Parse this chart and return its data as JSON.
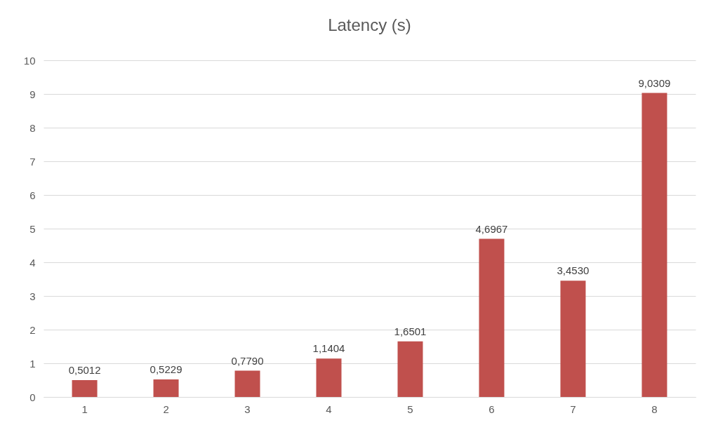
{
  "chart_data": {
    "type": "bar",
    "title": "Latency (s)",
    "categories": [
      "1",
      "2",
      "3",
      "4",
      "5",
      "6",
      "7",
      "8"
    ],
    "values": [
      0.5012,
      0.5229,
      0.779,
      1.1404,
      1.6501,
      4.6967,
      3.453,
      9.0309
    ],
    "value_labels": [
      "0,5012",
      "0,5229",
      "0,7790",
      "1,1404",
      "1,6501",
      "4,6967",
      "3,4530",
      "9,0309"
    ],
    "color": "#c0504d",
    "ylim": [
      0,
      10
    ],
    "yticks": [
      0,
      1,
      2,
      3,
      4,
      5,
      6,
      7,
      8,
      9,
      10
    ],
    "grid": "y"
  }
}
